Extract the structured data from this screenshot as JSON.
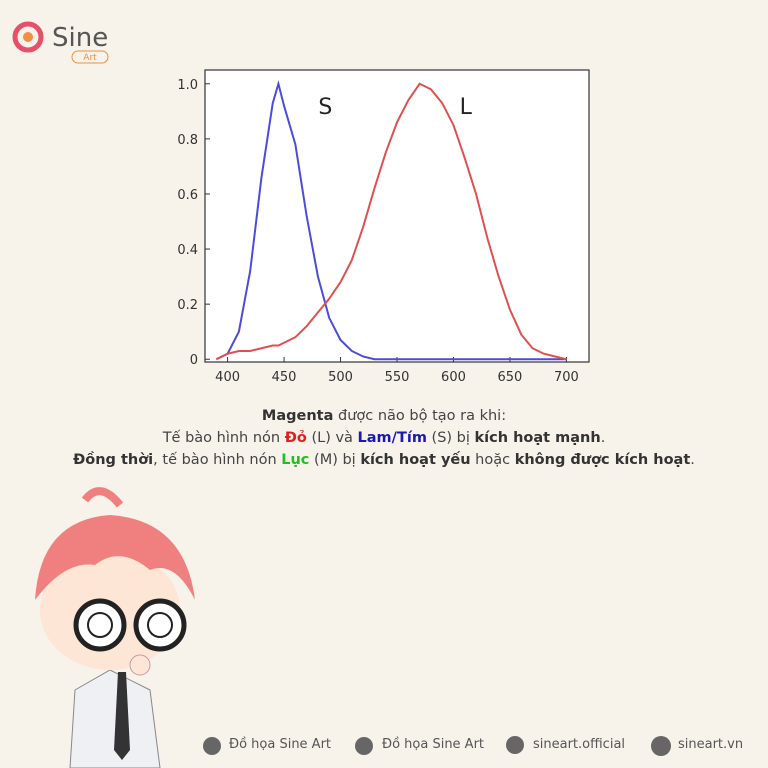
{
  "logo": {
    "name": "Sine",
    "sub": "Art"
  },
  "chart_data": {
    "type": "line",
    "x": [
      390,
      400,
      410,
      420,
      430,
      440,
      445,
      450,
      460,
      470,
      480,
      490,
      500,
      510,
      520,
      530,
      540,
      550,
      560,
      570,
      580,
      590,
      600,
      610,
      620,
      630,
      640,
      650,
      660,
      670,
      680,
      690,
      700
    ],
    "series": [
      {
        "name": "S",
        "color": "#4b4bdc",
        "values": [
          0,
          0.02,
          0.1,
          0.32,
          0.66,
          0.93,
          1.0,
          0.92,
          0.78,
          0.52,
          0.3,
          0.15,
          0.07,
          0.03,
          0.01,
          0,
          0,
          0,
          0,
          0,
          0,
          0,
          0,
          0,
          0,
          0,
          0,
          0,
          0,
          0,
          0,
          0,
          0
        ]
      },
      {
        "name": "L",
        "color": "#e05050",
        "values": [
          0,
          0.02,
          0.03,
          0.03,
          0.04,
          0.05,
          0.05,
          0.06,
          0.08,
          0.12,
          0.17,
          0.22,
          0.28,
          0.36,
          0.48,
          0.62,
          0.75,
          0.86,
          0.94,
          1.0,
          0.98,
          0.93,
          0.85,
          0.73,
          0.6,
          0.44,
          0.3,
          0.18,
          0.09,
          0.04,
          0.02,
          0.01,
          0
        ]
      }
    ],
    "xlim": [
      380,
      720
    ],
    "xticks": [
      400,
      450,
      500,
      550,
      600,
      650,
      700
    ],
    "ylim": [
      -0.01,
      1.05
    ],
    "yticks": [
      0,
      0.2,
      0.4,
      0.6,
      0.8,
      {
        "value": 1,
        "label": "1.0"
      }
    ],
    "grid": false
  },
  "caption": {
    "lines": [
      [
        {
          "text": "Magenta",
          "style": "bold"
        },
        {
          "text": " được não bộ tạo ra khi:"
        }
      ],
      [
        {
          "text": "Tế bào hình nón "
        },
        {
          "text": "Đỏ",
          "style": "bold",
          "color": "#e02020"
        },
        {
          "text": " (L) và "
        },
        {
          "text": "Lam/Tím",
          "style": "bold",
          "color": "#1a1ab0"
        },
        {
          "text": " (S) bị "
        },
        {
          "text": "kích hoạt mạnh",
          "style": "bold"
        },
        {
          "text": "."
        }
      ],
      [
        {
          "text": "Đồng thời",
          "style": "bold"
        },
        {
          "text": ", tế bào hình nón "
        },
        {
          "text": "Lục",
          "style": "bold",
          "color": "#22c022"
        },
        {
          "text": " (M) bị "
        },
        {
          "text": "kích hoạt yếu",
          "style": "bold"
        },
        {
          "text": " hoặc "
        },
        {
          "text": "không được kích hoạt",
          "style": "bold"
        },
        {
          "text": "."
        }
      ]
    ]
  },
  "footer": [
    "Đồ họa Sine Art",
    "Đồ họa Sine Art",
    "sineart.official",
    "sineart.vn"
  ]
}
